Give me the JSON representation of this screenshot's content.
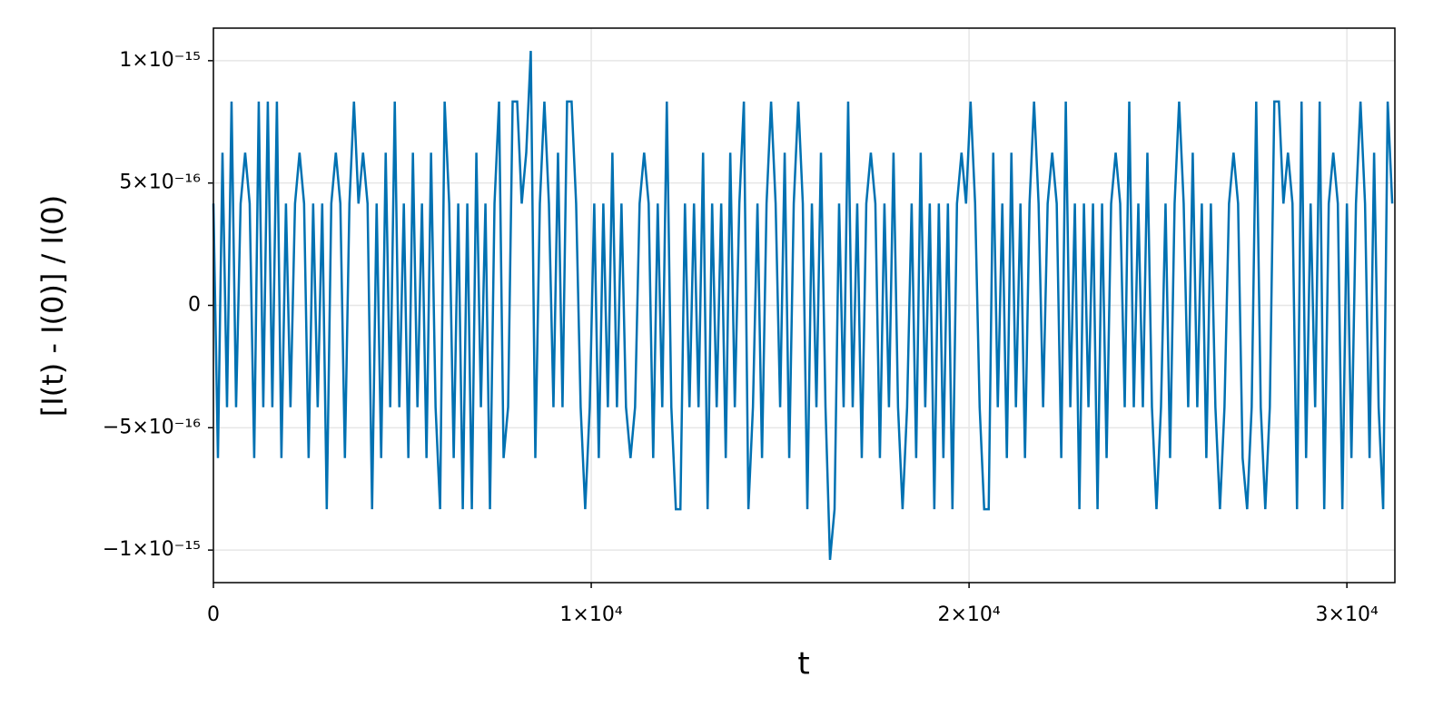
{
  "chart_data": {
    "type": "line",
    "xlabel": "t",
    "ylabel": "[I(t) - I(0)] / I(0)",
    "color": "#0071b2",
    "grid": true,
    "xlim": [
      0,
      31270
    ],
    "ylim": [
      -1.133e-15,
      1.133e-15
    ],
    "xticks": [
      0,
      {
        "value": 10000,
        "label": "1×10⁴"
      },
      {
        "value": 20000,
        "label": "2×10⁴"
      },
      {
        "value": 30000,
        "label": "3×10⁴"
      }
    ],
    "yticks": [
      {
        "value": -1e-15,
        "label": "−1×10⁻¹⁵"
      },
      {
        "value": -5e-16,
        "label": "−5×10⁻¹⁶"
      },
      0,
      {
        "value": 5e-16,
        "label": "5×10⁻¹⁶"
      },
      {
        "value": 1e-15,
        "label": "1×10⁻¹⁵"
      }
    ],
    "x": [
      0,
      120,
      240,
      360,
      480,
      600,
      720,
      840,
      960,
      1080,
      1200,
      1320,
      1440,
      1560,
      1680,
      1800,
      1920,
      2040,
      2160,
      2280,
      2400,
      2520,
      2640,
      2760,
      2880,
      3000,
      3120,
      3240,
      3360,
      3480,
      3600,
      3720,
      3840,
      3960,
      4080,
      4200,
      4320,
      4440,
      4560,
      4680,
      4800,
      4920,
      5040,
      5160,
      5280,
      5400,
      5520,
      5640,
      5760,
      5880,
      6000,
      6120,
      6240,
      6360,
      6480,
      6600,
      6720,
      6840,
      6960,
      7080,
      7200,
      7320,
      7440,
      7560,
      7680,
      7800,
      7920,
      8040,
      8160,
      8280,
      8400,
      8520,
      8640,
      8760,
      8880,
      9000,
      9120,
      9240,
      9360,
      9480,
      9600,
      9720,
      9840,
      9960,
      10080,
      10200,
      10320,
      10440,
      10560,
      10680,
      10800,
      10920,
      11040,
      11160,
      11280,
      11400,
      11520,
      11640,
      11760,
      11880,
      12000,
      12120,
      12240,
      12360,
      12480,
      12600,
      12720,
      12840,
      12960,
      13080,
      13200,
      13320,
      13440,
      13560,
      13680,
      13800,
      13920,
      14040,
      14160,
      14280,
      14400,
      14520,
      14640,
      14760,
      14880,
      15000,
      15120,
      15240,
      15360,
      15480,
      15600,
      15720,
      15840,
      15960,
      16080,
      16200,
      16320,
      16440,
      16560,
      16680,
      16800,
      16920,
      17040,
      17160,
      17280,
      17400,
      17520,
      17640,
      17760,
      17880,
      18000,
      18120,
      18240,
      18360,
      18480,
      18600,
      18720,
      18840,
      18960,
      19080,
      19200,
      19320,
      19440,
      19560,
      19680,
      19800,
      19920,
      20040,
      20160,
      20280,
      20400,
      20520,
      20640,
      20760,
      20880,
      21000,
      21120,
      21240,
      21360,
      21480,
      21600,
      21720,
      21840,
      21960,
      22080,
      22200,
      22320,
      22440,
      22560,
      22680,
      22800,
      22920,
      23040,
      23160,
      23280,
      23400,
      23520,
      23640,
      23760,
      23880,
      24000,
      24120,
      24240,
      24360,
      24480,
      24600,
      24720,
      24840,
      24960,
      25080,
      25200,
      25320,
      25440,
      25560,
      25680,
      25800,
      25920,
      26040,
      26160,
      26280,
      26400,
      26520,
      26640,
      26760,
      26880,
      27000,
      27120,
      27240,
      27360,
      27480,
      27600,
      27720,
      27840,
      27960,
      28080,
      28200,
      28320,
      28440,
      28560,
      28680,
      28800,
      28920,
      29040,
      29160,
      29280,
      29400,
      29520,
      29640,
      29760,
      29880,
      30000,
      30120,
      30240,
      30360,
      30480,
      30600,
      30720,
      30840,
      30960,
      31080,
      31200
    ],
    "values": [
      4.16e-16,
      -6.24e-16,
      6.24e-16,
      -4.16e-16,
      8.33e-16,
      -4.16e-16,
      4.16e-16,
      6.24e-16,
      4.16e-16,
      -6.24e-16,
      8.33e-16,
      -4.16e-16,
      8.33e-16,
      -4.16e-16,
      8.33e-16,
      -6.24e-16,
      4.16e-16,
      -4.16e-16,
      4.16e-16,
      6.24e-16,
      4.16e-16,
      -6.24e-16,
      4.16e-16,
      -4.16e-16,
      4.16e-16,
      -8.33e-16,
      4.16e-16,
      6.24e-16,
      4.16e-16,
      -6.24e-16,
      4.16e-16,
      8.33e-16,
      4.16e-16,
      6.24e-16,
      4.16e-16,
      -8.33e-16,
      4.16e-16,
      -6.24e-16,
      6.24e-16,
      -4.16e-16,
      8.33e-16,
      -4.16e-16,
      4.16e-16,
      -6.24e-16,
      6.24e-16,
      -4.16e-16,
      4.16e-16,
      -6.24e-16,
      6.24e-16,
      -4.16e-16,
      -8.33e-16,
      8.33e-16,
      4.16e-16,
      -6.24e-16,
      4.16e-16,
      -8.33e-16,
      4.16e-16,
      -8.33e-16,
      6.24e-16,
      -4.16e-16,
      4.16e-16,
      -8.33e-16,
      4.16e-16,
      8.33e-16,
      -6.24e-16,
      -4.16e-16,
      8.33e-16,
      8.33e-16,
      4.16e-16,
      6.24e-16,
      1.04e-15,
      -6.24e-16,
      4.16e-16,
      8.33e-16,
      4.16e-16,
      -4.16e-16,
      6.24e-16,
      -4.16e-16,
      8.33e-16,
      8.33e-16,
      4.16e-16,
      -4.16e-16,
      -8.33e-16,
      -4.16e-16,
      4.16e-16,
      -6.24e-16,
      4.16e-16,
      -4.16e-16,
      6.24e-16,
      -4.16e-16,
      4.16e-16,
      -4.16e-16,
      -6.24e-16,
      -4.16e-16,
      4.16e-16,
      6.24e-16,
      4.16e-16,
      -6.24e-16,
      4.16e-16,
      -4.16e-16,
      8.33e-16,
      -4.16e-16,
      -8.33e-16,
      -8.33e-16,
      4.16e-16,
      -4.16e-16,
      4.16e-16,
      -4.16e-16,
      6.24e-16,
      -8.33e-16,
      4.16e-16,
      -4.16e-16,
      4.16e-16,
      -6.24e-16,
      6.24e-16,
      -4.16e-16,
      4.16e-16,
      8.33e-16,
      -8.33e-16,
      -4.16e-16,
      4.16e-16,
      -6.24e-16,
      4.16e-16,
      8.33e-16,
      4.16e-16,
      -4.16e-16,
      6.24e-16,
      -6.24e-16,
      4.16e-16,
      8.33e-16,
      4.16e-16,
      -8.33e-16,
      4.16e-16,
      -4.16e-16,
      6.24e-16,
      -4.16e-16,
      -1.04e-15,
      -8.33e-16,
      4.16e-16,
      -4.16e-16,
      8.33e-16,
      -4.16e-16,
      4.16e-16,
      -6.24e-16,
      4.16e-16,
      6.24e-16,
      4.16e-16,
      -6.24e-16,
      4.16e-16,
      -4.16e-16,
      6.24e-16,
      -4.16e-16,
      -8.33e-16,
      -4.16e-16,
      4.16e-16,
      -6.24e-16,
      6.24e-16,
      -4.16e-16,
      4.16e-16,
      -8.33e-16,
      4.16e-16,
      -6.24e-16,
      4.16e-16,
      -8.33e-16,
      4.16e-16,
      6.24e-16,
      4.16e-16,
      8.33e-16,
      4.16e-16,
      -4.16e-16,
      -8.33e-16,
      -8.33e-16,
      6.24e-16,
      -4.16e-16,
      4.16e-16,
      -6.24e-16,
      6.24e-16,
      -4.16e-16,
      4.16e-16,
      -6.24e-16,
      4.16e-16,
      8.33e-16,
      4.16e-16,
      -4.16e-16,
      4.16e-16,
      6.24e-16,
      4.16e-16,
      -6.24e-16,
      8.33e-16,
      -4.16e-16,
      4.16e-16,
      -8.33e-16,
      4.16e-16,
      -4.16e-16,
      4.16e-16,
      -8.33e-16,
      4.16e-16,
      -6.24e-16,
      4.16e-16,
      6.24e-16,
      4.16e-16,
      -4.16e-16,
      8.33e-16,
      -4.16e-16,
      4.16e-16,
      -4.16e-16,
      6.24e-16,
      -4.16e-16,
      -8.33e-16,
      -4.16e-16,
      4.16e-16,
      -6.24e-16,
      4.16e-16,
      8.33e-16,
      4.16e-16,
      -4.16e-16,
      6.24e-16,
      -4.16e-16,
      4.16e-16,
      -6.24e-16,
      4.16e-16,
      -4.16e-16,
      -8.33e-16,
      -4.16e-16,
      4.16e-16,
      6.24e-16,
      4.16e-16,
      -6.24e-16,
      -8.33e-16,
      -4.16e-16,
      8.33e-16,
      -4.16e-16,
      -8.33e-16,
      -4.16e-16,
      8.33e-16,
      8.33e-16,
      4.16e-16,
      6.24e-16,
      4.16e-16,
      -8.33e-16,
      8.33e-16,
      -6.24e-16,
      4.16e-16,
      -4.16e-16,
      8.33e-16,
      -8.33e-16,
      4.16e-16,
      6.24e-16,
      4.16e-16,
      -8.33e-16,
      4.16e-16,
      -6.24e-16,
      4.16e-16,
      8.33e-16,
      4.16e-16,
      -6.24e-16,
      6.24e-16,
      -4.16e-16,
      -8.33e-16,
      8.33e-16,
      4.16e-16
    ]
  }
}
